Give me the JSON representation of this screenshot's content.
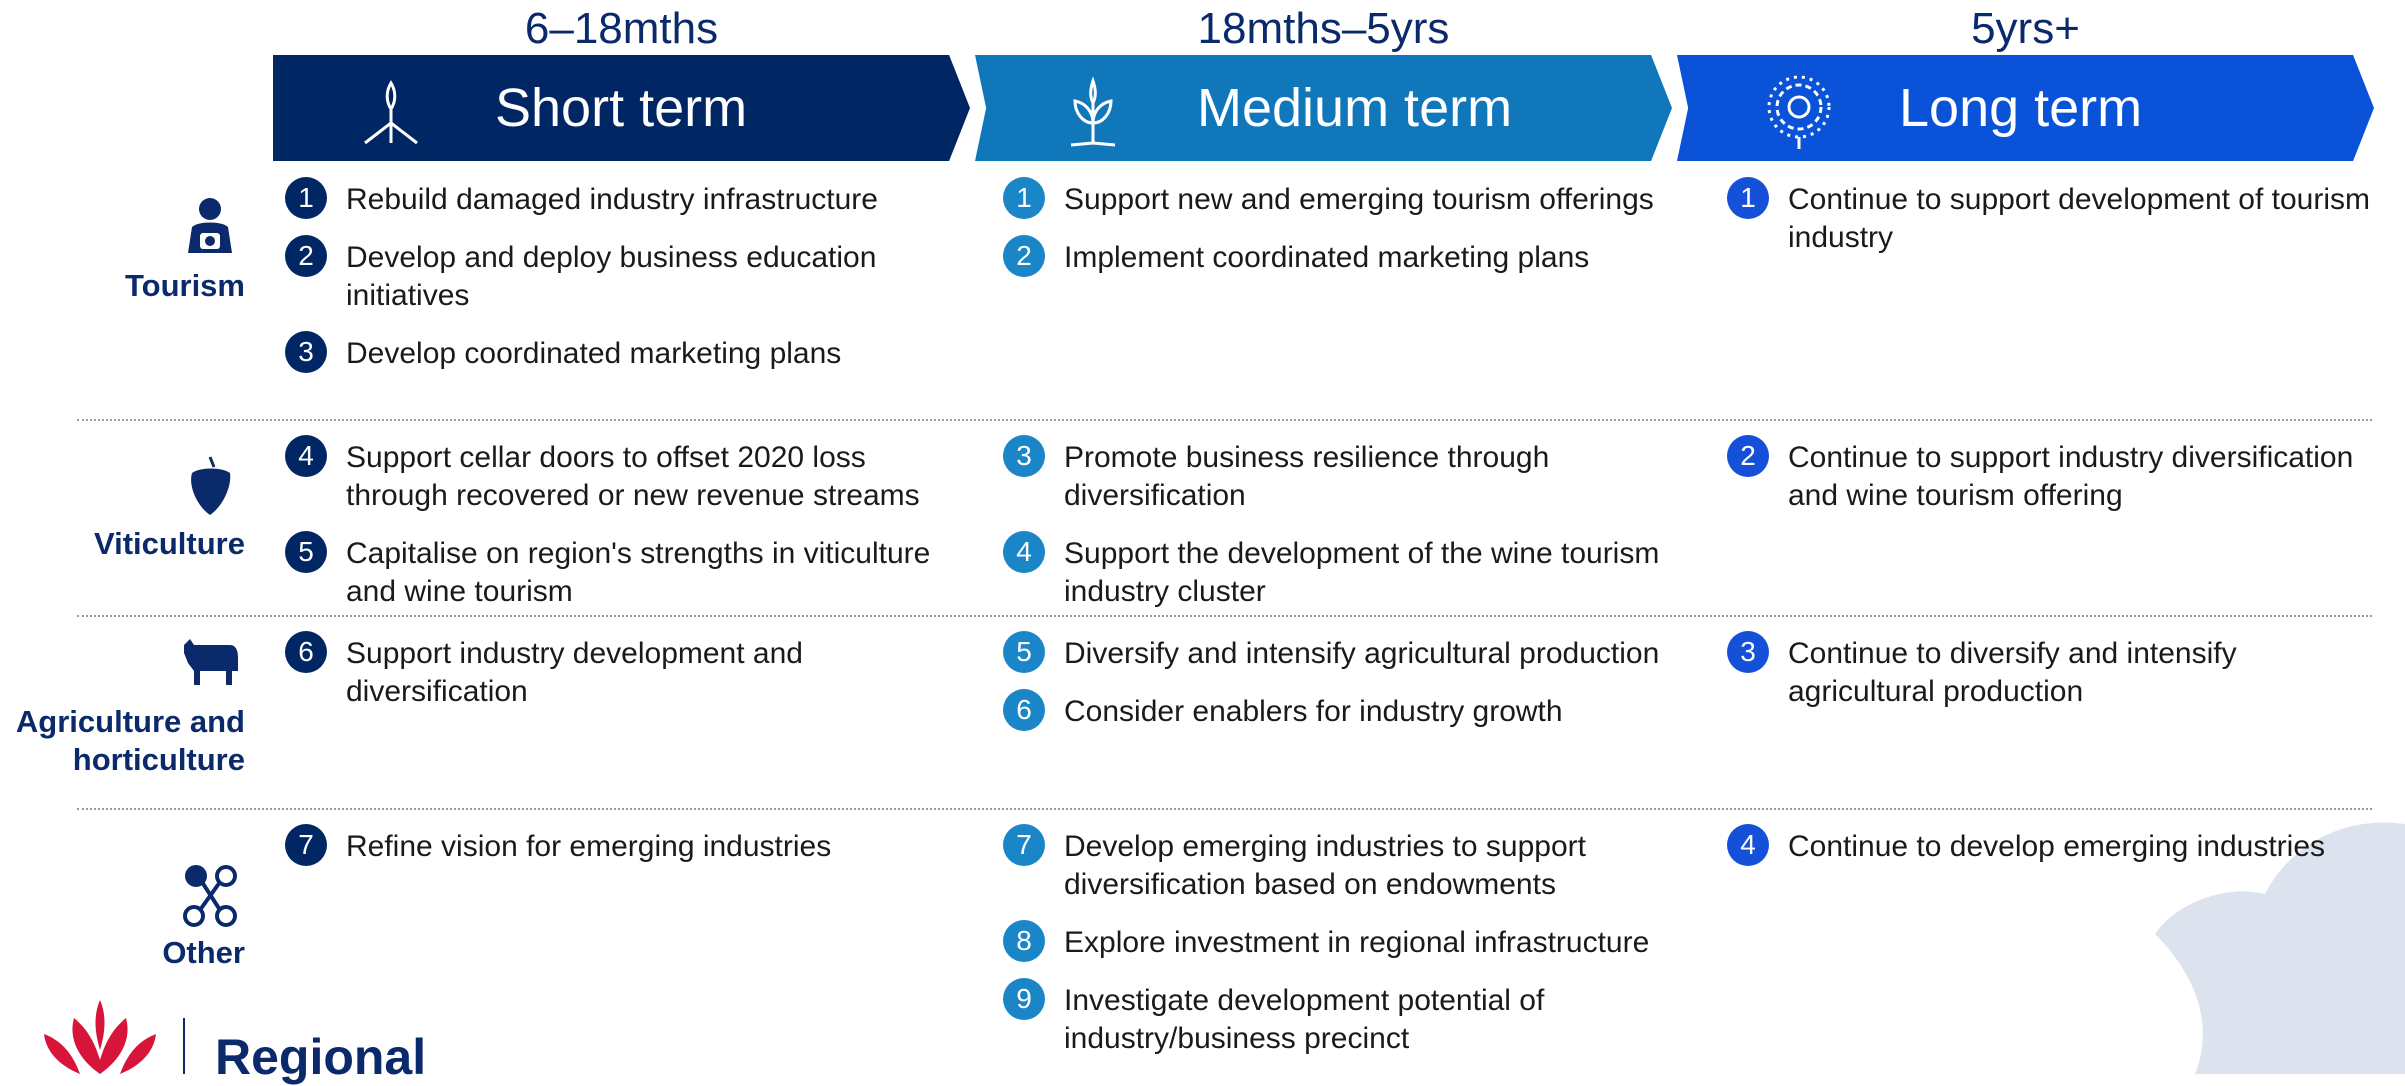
{
  "columns": [
    {
      "timeframe": "6–18mths",
      "title": "Short term"
    },
    {
      "timeframe": "18mths–5yrs",
      "title": "Medium term"
    },
    {
      "timeframe": "5yrs+",
      "title": "Long term"
    }
  ],
  "rows": [
    {
      "label": "Tourism",
      "cells": [
        [
          {
            "number": 1,
            "text": "Rebuild damaged industry infrastructure"
          },
          {
            "number": 2,
            "text": "Develop and deploy business education initiatives"
          },
          {
            "number": 3,
            "text": "Develop coordinated marketing plans"
          }
        ],
        [
          {
            "number": 1,
            "text": "Support new and emerging tourism offerings"
          },
          {
            "number": 2,
            "text": "Implement coordinated marketing plans"
          }
        ],
        [
          {
            "number": 1,
            "text": "Continue to support development of tourism industry"
          }
        ]
      ]
    },
    {
      "label": "Viticulture",
      "cells": [
        [
          {
            "number": 4,
            "text": "Support cellar doors to offset 2020 loss through recovered or new revenue streams"
          },
          {
            "number": 5,
            "text": "Capitalise on region's strengths in viticulture and wine tourism"
          }
        ],
        [
          {
            "number": 3,
            "text": "Promote business resilience through diversification"
          },
          {
            "number": 4,
            "text": "Support the development of the wine tourism industry cluster"
          }
        ],
        [
          {
            "number": 2,
            "text": "Continue to support industry diversification and wine tourism offering"
          }
        ]
      ]
    },
    {
      "label": "Agriculture and horticulture",
      "cells": [
        [
          {
            "number": 6,
            "text": "Support industry development and diversification"
          }
        ],
        [
          {
            "number": 5,
            "text": "Diversify and intensify agricultural production"
          },
          {
            "number": 6,
            "text": "Consider enablers for industry growth"
          }
        ],
        [
          {
            "number": 3,
            "text": "Continue to diversify and intensify agricultural production"
          }
        ]
      ]
    },
    {
      "label": "Other",
      "cells": [
        [
          {
            "number": 7,
            "text": "Refine vision for emerging industries"
          }
        ],
        [
          {
            "number": 7,
            "text": "Develop emerging industries to support diversification based on endowments"
          },
          {
            "number": 8,
            "text": "Explore investment in regional infrastructure"
          },
          {
            "number": 9,
            "text": "Investigate development potential of industry/business precinct"
          }
        ],
        [
          {
            "number": 4,
            "text": "Continue to develop emerging industries"
          }
        ]
      ]
    }
  ],
  "logo": {
    "text": "Regional"
  }
}
